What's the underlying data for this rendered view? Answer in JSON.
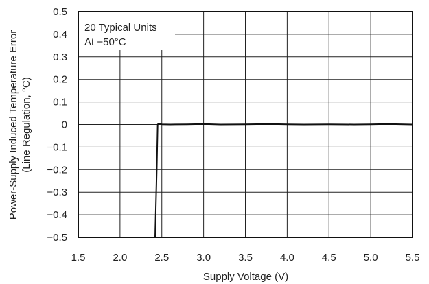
{
  "chart_data": {
    "type": "line",
    "title": "",
    "xlabel": "Supply Voltage (V)",
    "ylabel": "Power-Supply Induced Temperature Error",
    "ylabel2": "(Line Regulation, °C)",
    "xlim": [
      1.5,
      5.5
    ],
    "ylim": [
      -0.5,
      0.5
    ],
    "x_ticks": [
      "1.5",
      "2.0",
      "2.5",
      "3.0",
      "3.5",
      "4.0",
      "4.5",
      "5.0",
      "5.5"
    ],
    "y_ticks": [
      "0.5",
      "0.4",
      "0.3",
      "0.2",
      "0.1",
      "0",
      "−0.1",
      "−0.2",
      "−0.3",
      "−0.4",
      "−0.5"
    ],
    "grid": true,
    "annotation": [
      "20 Typical Units",
      "At −50°C"
    ],
    "series": [
      {
        "x": [
          2.42,
          2.44,
          2.45,
          2.46,
          2.5,
          2.6,
          2.8,
          3.0,
          3.2,
          3.5,
          3.8,
          4.0,
          4.2,
          4.5,
          4.8,
          5.0,
          5.2,
          5.5
        ],
        "y": [
          -0.5,
          -0.2,
          0.0,
          0.004,
          0.001,
          0.0,
          0.001,
          0.002,
          0.0,
          0.001,
          0.002,
          0.001,
          0.0,
          0.001,
          0.0,
          0.001,
          0.002,
          0.0
        ]
      }
    ],
    "colors": {
      "line": "#111111",
      "grid": "#222222",
      "frame": "#111111"
    }
  }
}
